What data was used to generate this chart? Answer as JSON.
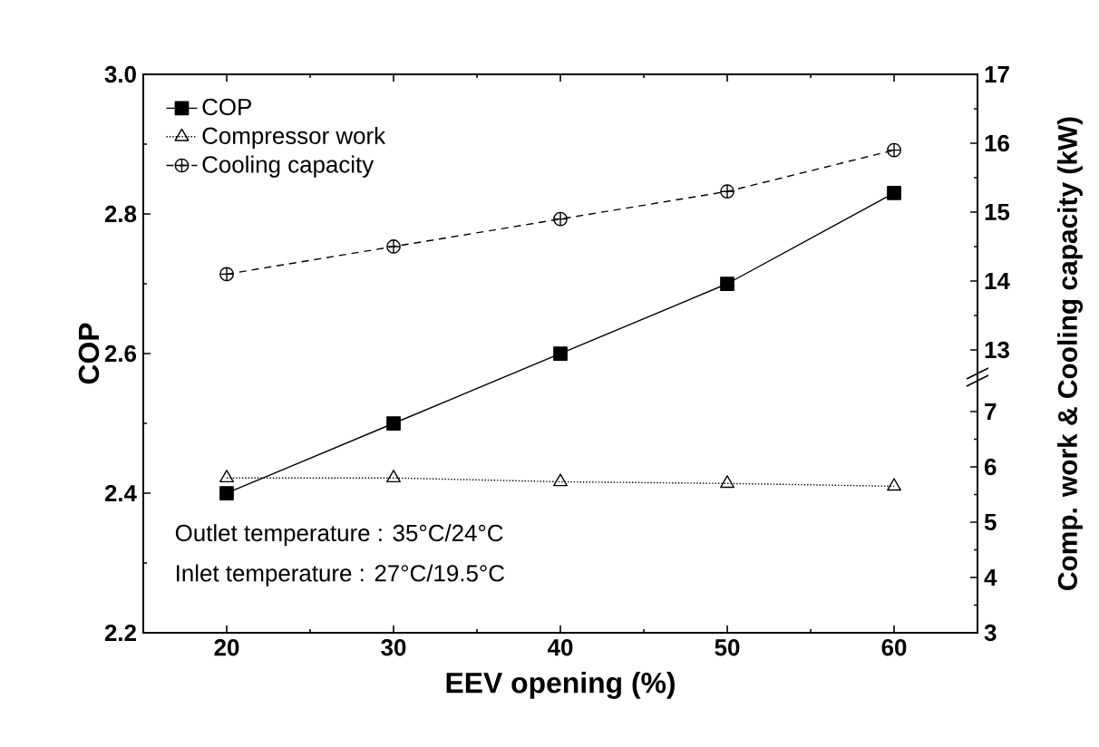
{
  "chart_data": {
    "type": "line",
    "xlabel": "EEV opening (%)",
    "ylabel": "COP",
    "y2label": "Comp. work & Cooling capacity (kW)",
    "x": [
      20,
      30,
      40,
      50,
      60
    ],
    "xlim": [
      15,
      65
    ],
    "xticks": [
      20,
      30,
      40,
      50,
      60
    ],
    "ylim": [
      2.2,
      3.0
    ],
    "yticks": [
      2.2,
      2.4,
      2.6,
      2.8,
      {
        "value": 3.0,
        "label": "3.0"
      }
    ],
    "y2lim": [
      3,
      7
    ],
    "y2ticks": [
      3,
      4,
      5,
      6,
      7
    ],
    "y3lim": [
      13,
      17
    ],
    "y3ticks": [
      13,
      14,
      15,
      16,
      17
    ],
    "series": [
      {
        "name": "COP",
        "color": "#000000",
        "values": [
          2.4,
          2.5,
          2.6,
          2.7,
          2.83
        ],
        "marker": "square",
        "line_style": "solid"
      },
      {
        "name": "Compressor work",
        "color": "#000000",
        "values": [
          5.8,
          5.8,
          5.73,
          5.7,
          5.65
        ],
        "marker": "triangle",
        "line_style": "dotted",
        "axis": "y2"
      },
      {
        "name": "Cooling capacity",
        "color": "#000000",
        "values": [
          14.1,
          14.5,
          14.9,
          15.3,
          15.9
        ],
        "marker": "cross",
        "line_style": "dashed",
        "axis": "y3"
      }
    ],
    "annotations": [
      "Outlet temperature : 35°C/24°C",
      "Inlet temperature : 27°C/19.5°C"
    ],
    "legend": "top left",
    "grid": false
  }
}
